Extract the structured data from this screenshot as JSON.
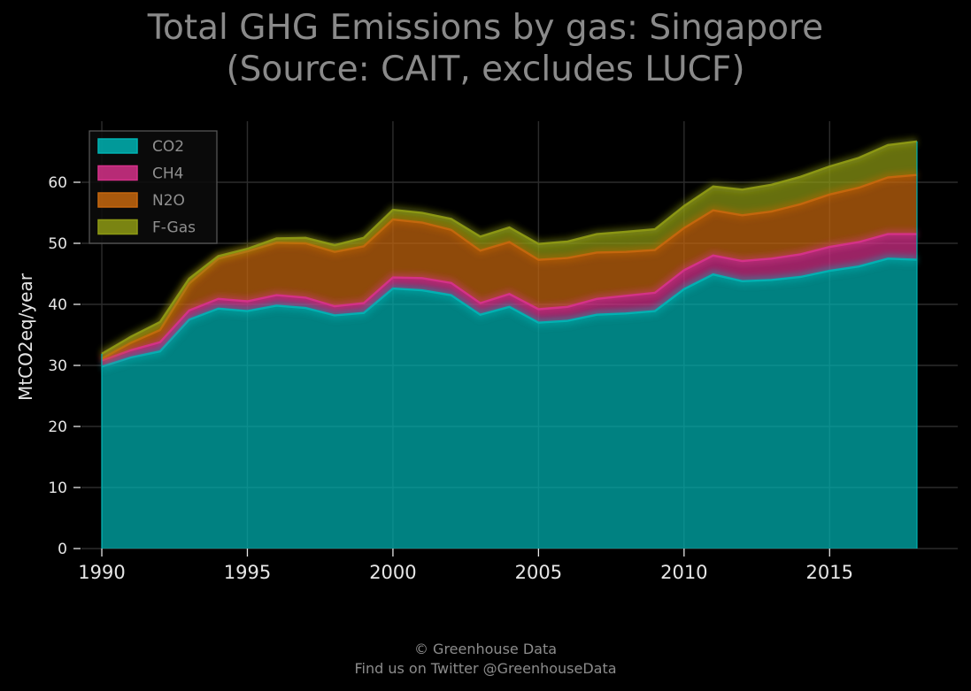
{
  "chart_data": {
    "type": "area",
    "stacked": true,
    "title": "Total GHG Emissions by gas: Singapore",
    "subtitle": "(Source: CAIT, excludes LUCF)",
    "xlabel": "",
    "ylabel": "MtCO2eq/year",
    "xlim": [
      1989.3,
      2019.4
    ],
    "ylim": [
      0,
      70
    ],
    "xticks": [
      1990,
      1995,
      2000,
      2005,
      2010,
      2015
    ],
    "yticks": [
      0,
      10,
      20,
      30,
      40,
      50,
      60
    ],
    "grid": true,
    "legend": "top-left",
    "x": [
      1990,
      1991,
      1992,
      1993,
      1994,
      1995,
      1996,
      1997,
      1998,
      1999,
      2000,
      2001,
      2002,
      2003,
      2004,
      2005,
      2006,
      2007,
      2008,
      2009,
      2010,
      2011,
      2012,
      2013,
      2014,
      2015,
      2016,
      2017,
      2018
    ],
    "series": [
      {
        "name": "CO2",
        "color": "#00b3b3",
        "values": [
          29.8,
          31.3,
          32.3,
          37.5,
          39.3,
          38.9,
          39.8,
          39.4,
          38.2,
          38.6,
          42.6,
          42.3,
          41.5,
          38.3,
          39.6,
          37.0,
          37.3,
          38.3,
          38.5,
          38.9,
          42.5,
          44.9,
          43.8,
          44.0,
          44.5,
          45.5,
          46.2,
          47.5,
          47.3
        ]
      },
      {
        "name": "CH4",
        "color": "#d6318a",
        "values": [
          1.0,
          1.2,
          1.5,
          1.5,
          1.6,
          1.6,
          1.7,
          1.7,
          1.5,
          1.6,
          1.8,
          2.0,
          2.0,
          1.9,
          2.1,
          2.2,
          2.3,
          2.6,
          2.9,
          3.0,
          3.1,
          3.1,
          3.3,
          3.5,
          3.7,
          3.9,
          4.0,
          4.0,
          4.2
        ]
      },
      {
        "name": "N2O",
        "color": "#c6670e",
        "values": [
          0.3,
          1.2,
          2.0,
          4.4,
          6.6,
          8.2,
          8.6,
          8.9,
          8.9,
          9.3,
          9.5,
          9.1,
          8.7,
          8.6,
          8.5,
          8.1,
          8.0,
          7.6,
          7.2,
          7.0,
          6.9,
          7.4,
          7.5,
          7.7,
          8.2,
          8.6,
          8.9,
          9.3,
          9.7
        ]
      },
      {
        "name": "F-Gas",
        "color": "#8e9a14",
        "values": [
          0.8,
          1.0,
          1.3,
          0.8,
          0.4,
          0.4,
          0.7,
          0.9,
          1.1,
          1.4,
          1.6,
          1.6,
          1.8,
          2.3,
          2.4,
          2.6,
          2.7,
          3.0,
          3.3,
          3.4,
          3.6,
          3.9,
          4.2,
          4.4,
          4.5,
          4.6,
          4.9,
          5.3,
          5.5
        ]
      }
    ]
  },
  "footer": {
    "line1": "© Greenhouse Data",
    "line2": "Find us on Twitter @GreenhouseData"
  }
}
